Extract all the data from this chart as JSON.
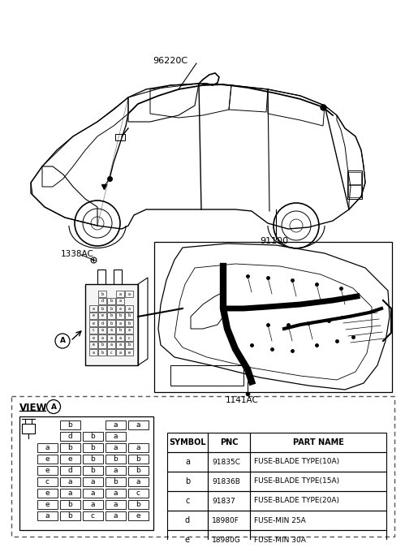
{
  "bg_color": "#ffffff",
  "label_96220C": "96220C",
  "label_91100": "91100",
  "label_1338AC": "1338AC",
  "label_1141AC": "1141AC",
  "label_view_A": "VIEW",
  "table_headers": [
    "SYMBOL",
    "PNC",
    "PART NAME"
  ],
  "table_rows": [
    [
      "a",
      "91835C",
      "FUSE-BLADE TYPE(10A)"
    ],
    [
      "b",
      "91836B",
      "FUSE-BLADE TYPE(15A)"
    ],
    [
      "c",
      "91837",
      "FUSE-BLADE TYPE(20A)"
    ],
    [
      "d",
      "18980F",
      "FUSE-MIN 25A"
    ],
    [
      "e",
      "18980G",
      "FUSE-MIN 30A"
    ]
  ],
  "fuse_grid": [
    [
      "",
      "b",
      "",
      "a",
      "a"
    ],
    [
      "",
      "d",
      "b",
      "a",
      ""
    ],
    [
      "a",
      "b",
      "b",
      "a",
      "a"
    ],
    [
      "e",
      "e",
      "b",
      "b",
      "b"
    ],
    [
      "e",
      "d",
      "b",
      "a",
      "b"
    ],
    [
      "c",
      "a",
      "a",
      "b",
      "a"
    ],
    [
      "e",
      "a",
      "a",
      "a",
      "c"
    ],
    [
      "e",
      "b",
      "a",
      "a",
      "b"
    ],
    [
      "a",
      "b",
      "c",
      "a",
      "e"
    ]
  ]
}
